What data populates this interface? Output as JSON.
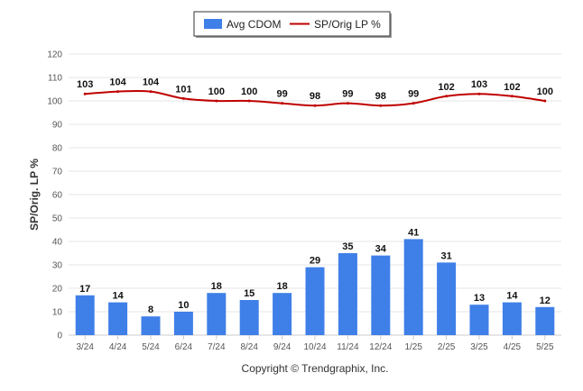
{
  "legend": {
    "bar_label": "Avg CDOM",
    "line_label": "SP/Orig LP %"
  },
  "credit": "Copyright © Trendgraphix, Inc.",
  "colors": {
    "bar": "#3f7fe8",
    "line": "#c00000",
    "grid": "#e6e6e6",
    "axis": "#cccccc"
  },
  "chart_data": {
    "type": "bar",
    "categories": [
      "3/24",
      "4/24",
      "5/24",
      "6/24",
      "7/24",
      "8/24",
      "9/24",
      "10/24",
      "11/24",
      "12/24",
      "1/25",
      "2/25",
      "3/25",
      "4/25",
      "5/25"
    ],
    "series": [
      {
        "name": "Avg CDOM",
        "type": "bar",
        "values": [
          17,
          14,
          8,
          10,
          18,
          15,
          18,
          29,
          35,
          34,
          41,
          31,
          13,
          14,
          12
        ]
      },
      {
        "name": "SP/Orig LP %",
        "type": "line",
        "values": [
          103,
          104,
          104,
          101,
          100,
          100,
          99,
          98,
          99,
          98,
          99,
          102,
          103,
          102,
          100
        ]
      }
    ],
    "ylabel": "SP/Orig. LP %",
    "xlabel": "",
    "ylim": [
      0,
      120
    ],
    "yticks": [
      0,
      10,
      20,
      30,
      40,
      50,
      60,
      70,
      80,
      90,
      100,
      110,
      120
    ],
    "grid": true,
    "legend_position": "top-center"
  }
}
